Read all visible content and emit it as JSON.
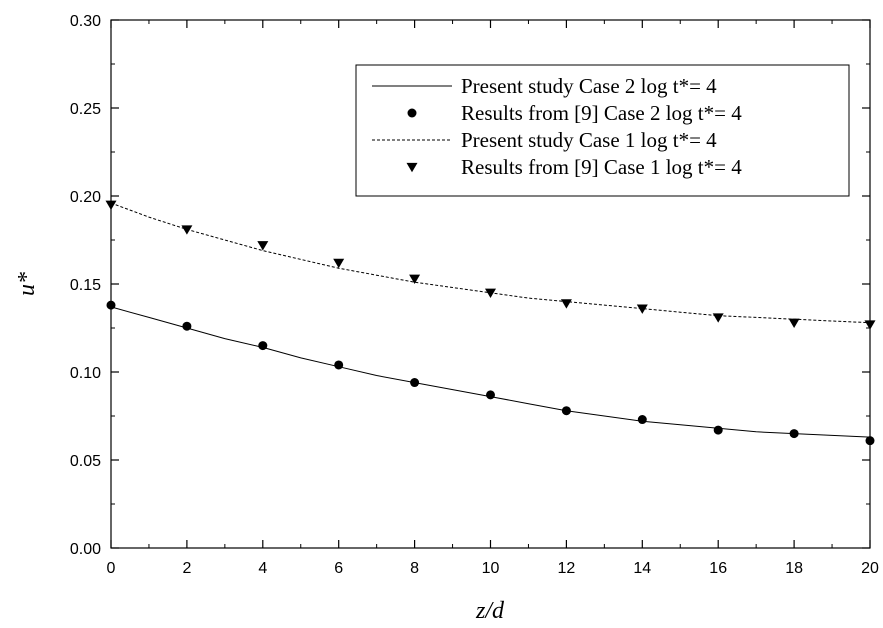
{
  "chart_data": {
    "type": "line",
    "title": "",
    "xlabel": "z/d",
    "ylabel": "u*",
    "xlim": [
      0,
      20
    ],
    "ylim": [
      0.0,
      0.3
    ],
    "x_ticks": [
      "0",
      "2",
      "4",
      "6",
      "8",
      "10",
      "12",
      "14",
      "16",
      "18",
      "20"
    ],
    "y_ticks": [
      "0.00",
      "0.05",
      "0.10",
      "0.15",
      "0.20",
      "0.25",
      "0.30"
    ],
    "grid": false,
    "legend_position": "top-right",
    "series": [
      {
        "name": "Present study Case 2 log t*= 4",
        "style": "solid-line",
        "x": [
          0,
          1,
          2,
          3,
          4,
          5,
          6,
          7,
          8,
          9,
          10,
          11,
          12,
          13,
          14,
          15,
          16,
          17,
          18,
          19,
          20
        ],
        "y": [
          0.137,
          0.131,
          0.125,
          0.119,
          0.114,
          0.108,
          0.103,
          0.098,
          0.094,
          0.09,
          0.086,
          0.082,
          0.078,
          0.075,
          0.072,
          0.07,
          0.068,
          0.066,
          0.065,
          0.064,
          0.063
        ]
      },
      {
        "name": "Results from [9] Case 2 log t*= 4",
        "style": "circle-marker",
        "x": [
          0,
          2,
          4,
          6,
          8,
          10,
          12,
          14,
          16,
          18,
          20
        ],
        "y": [
          0.138,
          0.126,
          0.115,
          0.104,
          0.094,
          0.087,
          0.078,
          0.073,
          0.067,
          0.065,
          0.061
        ]
      },
      {
        "name": "Present study Case 1 log t*= 4",
        "style": "dashed-line",
        "x": [
          0,
          1,
          2,
          3,
          4,
          5,
          6,
          7,
          8,
          9,
          10,
          11,
          12,
          13,
          14,
          15,
          16,
          17,
          18,
          19,
          20
        ],
        "y": [
          0.196,
          0.188,
          0.181,
          0.175,
          0.169,
          0.164,
          0.159,
          0.155,
          0.151,
          0.148,
          0.145,
          0.142,
          0.14,
          0.138,
          0.136,
          0.134,
          0.132,
          0.131,
          0.13,
          0.129,
          0.128
        ]
      },
      {
        "name": "Results from [9] Case 1 log t*= 4",
        "style": "triangle-down-marker",
        "x": [
          0,
          2,
          4,
          6,
          8,
          10,
          12,
          14,
          16,
          18,
          20
        ],
        "y": [
          0.195,
          0.181,
          0.172,
          0.162,
          0.153,
          0.145,
          0.139,
          0.136,
          0.131,
          0.128,
          0.127
        ]
      }
    ]
  }
}
